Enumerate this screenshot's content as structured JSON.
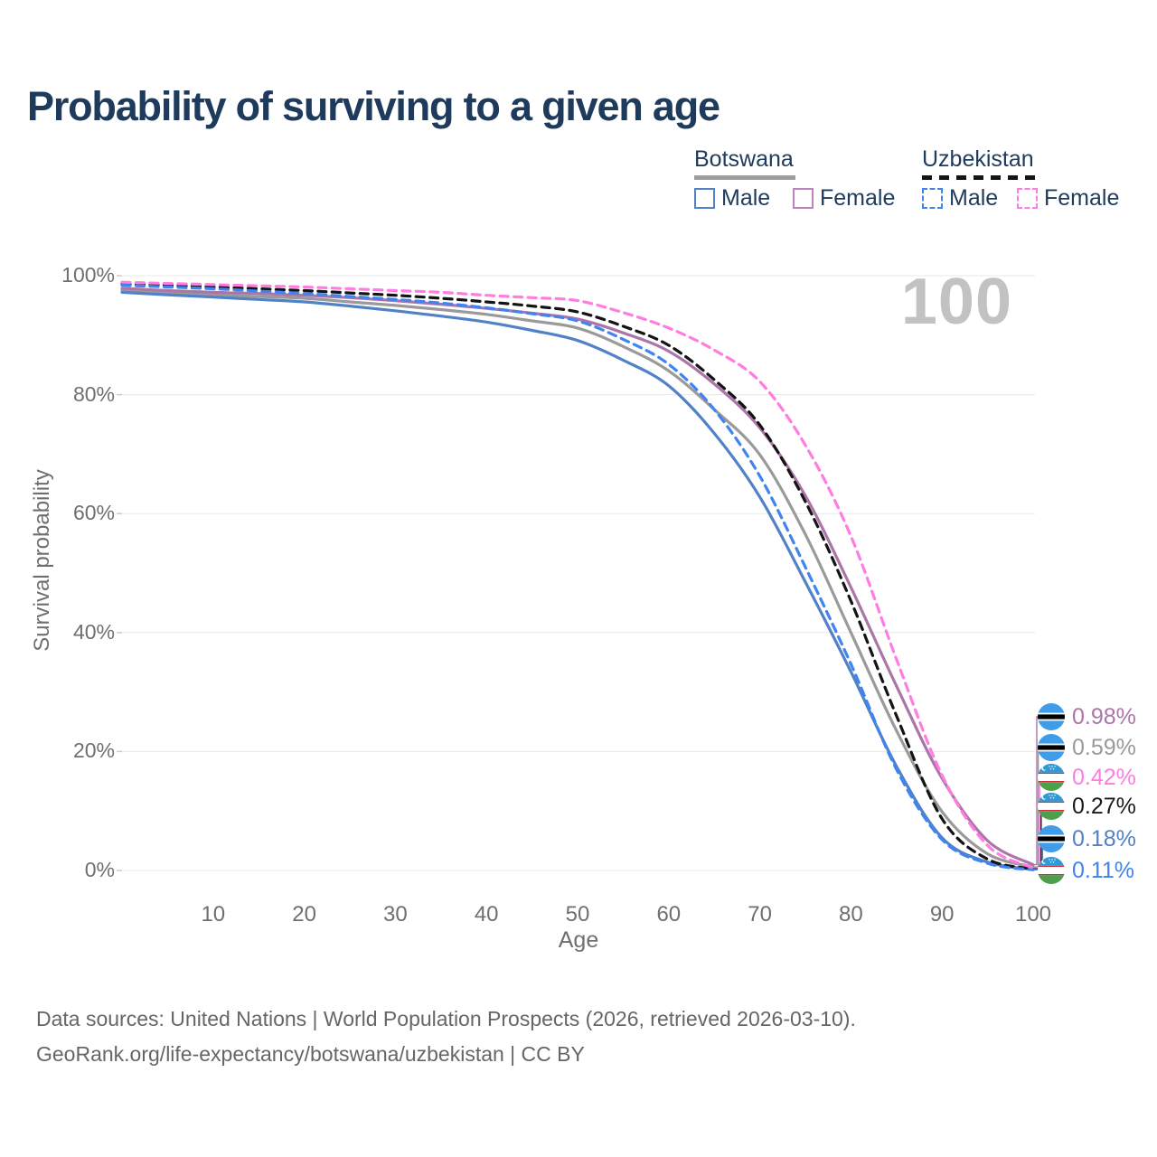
{
  "title": "Probability of surviving to a given age",
  "watermark": "100",
  "legend": {
    "groups": [
      {
        "label": "Botswana",
        "line_style": "solid",
        "underline_color": "#9e9e9e",
        "items": [
          {
            "label": "Male",
            "color": "#5181c6"
          },
          {
            "label": "Female",
            "color": "#bc84bc"
          }
        ]
      },
      {
        "label": "Uzbekistan",
        "line_style": "dashed",
        "underline_color": "#141414",
        "items": [
          {
            "label": "Male",
            "color": "#3f84f0"
          },
          {
            "label": "Female",
            "color": "#ff7ce0"
          }
        ]
      }
    ]
  },
  "axes": {
    "x": {
      "label": "Age",
      "ticks": [
        10,
        20,
        30,
        40,
        50,
        60,
        70,
        80,
        90,
        100
      ]
    },
    "y": {
      "label": "Survival probability",
      "ticks": [
        "100%",
        "80%",
        "60%",
        "40%",
        "20%",
        "0%"
      ]
    }
  },
  "chart_data": {
    "type": "line",
    "title": "Probability of surviving to a given age",
    "xlabel": "Age",
    "ylabel": "Survival probability",
    "xlim": [
      0,
      100
    ],
    "ylim": [
      0,
      100
    ],
    "grid": "horizontal",
    "legend_position": "top-right",
    "x": [
      0,
      5,
      10,
      15,
      20,
      25,
      30,
      35,
      40,
      45,
      50,
      55,
      60,
      65,
      70,
      75,
      80,
      85,
      90,
      95,
      100
    ],
    "series": [
      {
        "name": "Botswana Both sexes",
        "country": "Botswana",
        "sex": "Both",
        "style": "solid",
        "color": "#9a9a9a",
        "end_label": "0.59%",
        "values": [
          97.6,
          97.1,
          96.8,
          96.5,
          96.2,
          95.6,
          95.0,
          94.3,
          93.5,
          92.4,
          91.2,
          88.1,
          84.0,
          77.5,
          69.9,
          56.5,
          40.0,
          23.5,
          9.9,
          2.8,
          0.59
        ]
      },
      {
        "name": "Botswana Female",
        "country": "Botswana",
        "sex": "Female",
        "style": "solid",
        "color": "#ab75a8",
        "end_label": "0.98%",
        "values": [
          97.9,
          97.5,
          97.2,
          97.0,
          96.7,
          96.3,
          95.8,
          95.2,
          94.5,
          93.7,
          92.7,
          90.4,
          87.3,
          81.8,
          74.4,
          63.0,
          47.6,
          31.0,
          15.5,
          5.0,
          0.98
        ]
      },
      {
        "name": "Botswana Male",
        "country": "Botswana",
        "sex": "Male",
        "style": "solid",
        "color": "#5181c6",
        "end_label": "0.18%",
        "values": [
          97.2,
          96.8,
          96.4,
          96.0,
          95.6,
          94.9,
          94.1,
          93.2,
          92.2,
          90.8,
          89.1,
          85.8,
          81.5,
          73.5,
          62.8,
          48.5,
          33.4,
          17.5,
          5.5,
          1.4,
          0.18
        ]
      },
      {
        "name": "Uzbekistan Both sexes",
        "country": "Uzbekistan",
        "sex": "Both",
        "style": "dashed",
        "color": "#141414",
        "end_label": "0.27%",
        "values": [
          98.6,
          98.4,
          98.1,
          97.8,
          97.5,
          97.1,
          96.7,
          96.2,
          95.6,
          94.9,
          93.9,
          91.5,
          88.3,
          82.5,
          74.9,
          62.0,
          45.3,
          26.0,
          8.7,
          1.9,
          0.27
        ]
      },
      {
        "name": "Uzbekistan Male",
        "country": "Uzbekistan",
        "sex": "Male",
        "style": "dashed",
        "color": "#3f84f0",
        "end_label": "0.11%",
        "values": [
          98.4,
          98.1,
          97.8,
          97.4,
          97.0,
          96.5,
          96.0,
          95.4,
          94.6,
          93.6,
          92.4,
          89.3,
          85.1,
          77.5,
          66.3,
          51.0,
          34.7,
          17.0,
          5.2,
          1.2,
          0.11
        ]
      },
      {
        "name": "Uzbekistan Female",
        "country": "Uzbekistan",
        "sex": "Female",
        "style": "dashed",
        "color": "#ff7ce0",
        "end_label": "0.42%",
        "values": [
          98.9,
          98.7,
          98.5,
          98.3,
          98.1,
          97.8,
          97.5,
          97.2,
          96.7,
          96.3,
          95.8,
          93.8,
          91.2,
          87.5,
          82.2,
          71.5,
          56.2,
          35.5,
          16.0,
          4.2,
          0.42
        ]
      }
    ]
  },
  "end_labels": [
    {
      "flag": "botswana",
      "value": "0.98%",
      "color": "#ab75a8"
    },
    {
      "flag": "botswana",
      "value": "0.59%",
      "color": "#9a9a9a"
    },
    {
      "flag": "uzbekistan",
      "value": "0.42%",
      "color": "#ff7ce0"
    },
    {
      "flag": "uzbekistan",
      "value": "0.27%",
      "color": "#1a1a1a"
    },
    {
      "flag": "botswana",
      "value": "0.18%",
      "color": "#5181c6"
    },
    {
      "flag": "uzbekistan",
      "value": "0.11%",
      "color": "#3f84f0"
    }
  ],
  "footer": {
    "line1": "Data sources: United Nations | World Population Prospects (2026, retrieved 2026-03-10).",
    "line2": "GeoRank.org/life-expectancy/botswana/uzbekistan | CC BY"
  }
}
